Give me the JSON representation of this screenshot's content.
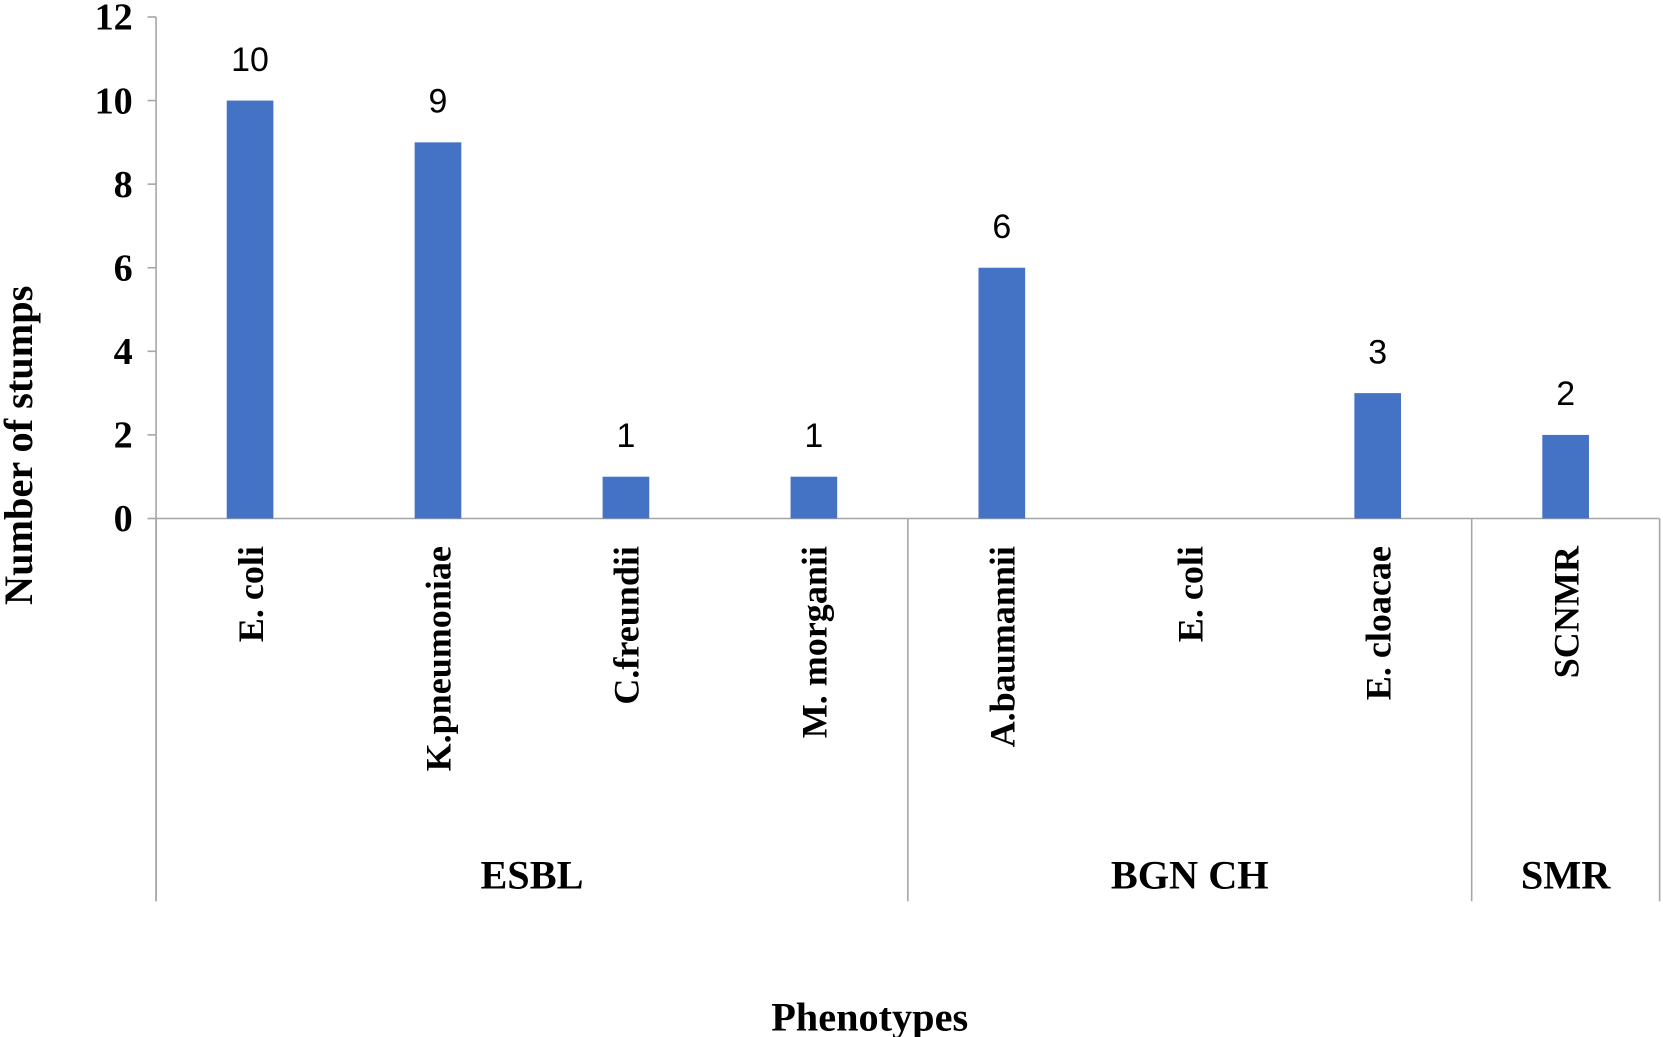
{
  "chart_data": {
    "type": "bar",
    "title": "",
    "xlabel": "Phenotypes",
    "ylabel": "Number of stumps",
    "ylim": [
      0,
      12
    ],
    "yticks": [
      0,
      2,
      4,
      6,
      8,
      10,
      12
    ],
    "grid": false,
    "legend": "none",
    "bar_color": "#4472C4",
    "categories": [
      "E. coli",
      "K.pneumoniae",
      "C.freundii",
      "M. morganii",
      "A.baumannii",
      "E. coli",
      "E. cloacae",
      "SCNMR"
    ],
    "values": [
      10,
      9,
      1,
      1,
      6,
      0,
      3,
      2
    ],
    "data_labels": [
      "10",
      "9",
      "1",
      "1",
      "6",
      null,
      "3",
      "2"
    ],
    "groups": [
      {
        "label": "ESBL",
        "count": 4
      },
      {
        "label": "BGN CH",
        "count": 3
      },
      {
        "label": "SMR",
        "count": 1
      }
    ]
  }
}
